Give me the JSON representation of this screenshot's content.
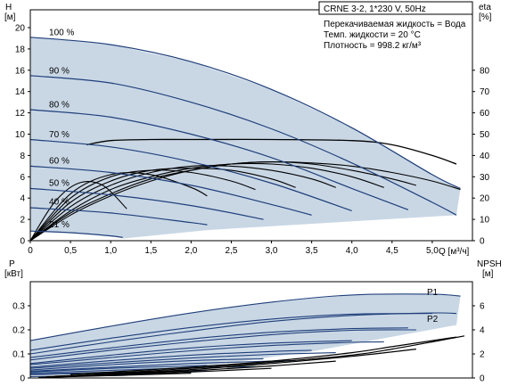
{
  "colors": {
    "region_fill": "#c9d7e5",
    "curve_blue": "#1f3f7a",
    "curve_black": "#000000",
    "frame": "#000000"
  },
  "chart_data": [
    {
      "type": "line",
      "title": "CRNE 3-2, 1*230 V, 50Hz",
      "info_lines": [
        "Перекачиваемая жидкость = Вода",
        "Темп. жидкости = 20 °C",
        "Плотность = 998.2 кг/м³"
      ],
      "xlabel": "Q [м³/ч]",
      "x_ticks": [
        "0",
        "0,5",
        "1,0",
        "1,5",
        "2,0",
        "2,5",
        "3,0",
        "3,5",
        "4,0",
        "4,5",
        "5,0"
      ],
      "xlim": [
        0,
        5.5
      ],
      "ylabel_left": {
        "line1": "H",
        "line2": "[м]"
      },
      "y_ticks_left": [
        "0",
        "2",
        "4",
        "6",
        "8",
        "10",
        "12",
        "14",
        "16",
        "18",
        "20"
      ],
      "ylim_left": [
        0,
        20
      ],
      "ylabel_right": {
        "line1": "eta",
        "line2": "[%]"
      },
      "y_ticks_right": [
        "0",
        "10",
        "20",
        "30",
        "40",
        "50",
        "60",
        "70",
        "80"
      ],
      "ylim_right": [
        0,
        100
      ],
      "grid": false,
      "speed_labels": [
        "100 %",
        "90 %",
        "80 %",
        "70 %",
        "60 %",
        "50 %",
        "40 %",
        "21 %"
      ],
      "head_series": [
        {
          "speed": 1.0,
          "x": [
            0,
            1.0,
            2.0,
            3.0,
            4.0,
            5.0,
            5.35
          ],
          "y": [
            19.1,
            18.4,
            16.8,
            14.2,
            10.6,
            6.2,
            4.9
          ]
        },
        {
          "speed": 0.9,
          "x": [
            0,
            1.0,
            2.0,
            3.0,
            4.0,
            5.0,
            5.3
          ],
          "y": [
            15.5,
            14.8,
            13.0,
            10.5,
            7.3,
            3.6,
            2.4
          ]
        },
        {
          "speed": 0.8,
          "x": [
            0,
            1.0,
            2.0,
            3.0,
            4.0,
            4.7
          ],
          "y": [
            12.3,
            11.6,
            10.0,
            7.8,
            4.9,
            2.9
          ]
        },
        {
          "speed": 0.7,
          "x": [
            0,
            1.0,
            2.0,
            3.0,
            4.0
          ],
          "y": [
            9.5,
            8.8,
            7.4,
            5.4,
            2.8
          ]
        },
        {
          "speed": 0.6,
          "x": [
            0,
            1.0,
            2.0,
            3.0,
            3.5
          ],
          "y": [
            7.0,
            6.4,
            5.2,
            3.4,
            2.4
          ]
        },
        {
          "speed": 0.5,
          "x": [
            0,
            1.0,
            2.0,
            2.9
          ],
          "y": [
            4.9,
            4.3,
            3.3,
            2.0
          ]
        },
        {
          "speed": 0.4,
          "x": [
            0,
            1.0,
            2.0,
            2.2
          ],
          "y": [
            3.1,
            2.6,
            1.7,
            1.5
          ]
        },
        {
          "speed": 0.21,
          "x": [
            0,
            0.5,
            1.0,
            1.15
          ],
          "y": [
            0.9,
            0.75,
            0.45,
            0.3
          ]
        }
      ],
      "efficiency_series": [
        {
          "speed": 1.0,
          "x": [
            0,
            0.5,
            1.0,
            1.5,
            2.0,
            2.5,
            3.0,
            3.5,
            4.0,
            4.5,
            5.0,
            5.35
          ],
          "y": [
            0,
            12,
            21,
            28,
            33,
            36,
            37,
            36.5,
            35,
            32,
            28,
            24
          ]
        },
        {
          "speed": 0.9,
          "x": [
            0,
            0.5,
            1.0,
            1.5,
            2.0,
            2.5,
            3.0,
            3.5,
            4.0,
            4.5,
            4.8
          ],
          "y": [
            0,
            13,
            22,
            29,
            33,
            36,
            37,
            36,
            33,
            29,
            26
          ]
        },
        {
          "speed": 0.8,
          "x": [
            0,
            0.5,
            1.0,
            1.5,
            2.0,
            2.5,
            3.0,
            3.5,
            4.0,
            4.4
          ],
          "y": [
            0,
            14,
            24,
            30,
            34,
            36,
            36,
            34,
            30,
            25
          ]
        },
        {
          "speed": 0.7,
          "x": [
            0,
            0.5,
            1.0,
            1.5,
            2.0,
            2.5,
            3.0,
            3.5,
            3.8
          ],
          "y": [
            0,
            16,
            26,
            32,
            35,
            35,
            33,
            29,
            25
          ]
        },
        {
          "speed": 0.6,
          "x": [
            0,
            0.5,
            1.0,
            1.5,
            2.0,
            2.5,
            3.0,
            3.3
          ],
          "y": [
            0,
            18,
            28,
            33,
            34,
            33,
            29,
            25
          ]
        },
        {
          "speed": 0.5,
          "x": [
            0,
            0.5,
            1.0,
            1.5,
            2.0,
            2.5,
            2.8
          ],
          "y": [
            0,
            20,
            30,
            33,
            32,
            28,
            24
          ]
        },
        {
          "speed": 0.4,
          "x": [
            0,
            0.5,
            1.0,
            1.5,
            2.0,
            2.2
          ],
          "y": [
            0,
            22,
            31,
            31,
            25,
            21
          ]
        },
        {
          "speed": 0.21,
          "x": [
            0,
            0.3,
            0.6,
            0.9,
            1.2
          ],
          "y": [
            0,
            18,
            27,
            26,
            15
          ]
        }
      ],
      "efficiency_envelope": {
        "x": [
          0.7,
          1.0,
          1.5,
          2.0,
          3.0,
          4.0,
          4.5,
          5.0,
          5.3
        ],
        "y": [
          45,
          47,
          47.5,
          47.5,
          47.5,
          47,
          45,
          40,
          36
        ]
      }
    },
    {
      "type": "line",
      "title": "",
      "xlim": [
        0,
        5.5
      ],
      "ylabel_left": {
        "line1": "P",
        "line2": "[кВт]"
      },
      "y_ticks_left": [
        "0",
        "0.1",
        "0.2",
        "0.3"
      ],
      "ylim_left": [
        0,
        0.4
      ],
      "ylabel_right": {
        "line1": "NPSH",
        "line2": "[м]"
      },
      "y_ticks_right": [
        "0",
        "2",
        "4",
        "6"
      ],
      "ylim_right": [
        0,
        8
      ],
      "grid": false,
      "series_labels": [
        "P1",
        "P2"
      ],
      "power_p1_series": [
        {
          "speed": 1.0,
          "x": [
            0,
            1.0,
            2.0,
            3.0,
            4.0,
            5.0,
            5.35
          ],
          "y": [
            0.155,
            0.215,
            0.27,
            0.315,
            0.345,
            0.348,
            0.34
          ]
        },
        {
          "speed": 0.9,
          "x": [
            0,
            1.0,
            2.0,
            3.0,
            4.0,
            5.0
          ],
          "y": [
            0.115,
            0.165,
            0.21,
            0.245,
            0.265,
            0.268
          ]
        },
        {
          "speed": 0.8,
          "x": [
            0,
            1.0,
            2.0,
            3.0,
            4.0,
            4.7
          ],
          "y": [
            0.085,
            0.125,
            0.162,
            0.19,
            0.205,
            0.208
          ]
        },
        {
          "speed": 0.7,
          "x": [
            0,
            1.0,
            2.0,
            3.0,
            4.0
          ],
          "y": [
            0.06,
            0.095,
            0.125,
            0.145,
            0.155
          ]
        },
        {
          "speed": 0.6,
          "x": [
            0,
            1.0,
            2.0,
            3.0,
            3.5
          ],
          "y": [
            0.045,
            0.072,
            0.095,
            0.11,
            0.115
          ]
        },
        {
          "speed": 0.5,
          "x": [
            0,
            1.0,
            2.0,
            2.9
          ],
          "y": [
            0.033,
            0.055,
            0.072,
            0.08
          ]
        },
        {
          "speed": 0.4,
          "x": [
            0,
            1.0,
            2.0,
            2.2
          ],
          "y": [
            0.025,
            0.04,
            0.05,
            0.052
          ]
        },
        {
          "speed": 0.21,
          "x": [
            0,
            0.5,
            1.0,
            1.15
          ],
          "y": [
            0.015,
            0.02,
            0.024,
            0.025
          ]
        }
      ],
      "power_p2_series": [
        {
          "speed": 1.0,
          "x": [
            0,
            1.0,
            2.0,
            3.0,
            4.0,
            5.0,
            5.3
          ],
          "y": [
            0.1,
            0.15,
            0.195,
            0.235,
            0.26,
            0.27,
            0.268
          ]
        },
        {
          "speed": 0.9,
          "x": [
            0,
            1.0,
            2.0,
            3.0,
            4.0,
            4.8
          ],
          "y": [
            0.075,
            0.115,
            0.15,
            0.18,
            0.198,
            0.2
          ]
        },
        {
          "speed": 0.8,
          "x": [
            0,
            1.0,
            2.0,
            3.0,
            4.0,
            4.4
          ],
          "y": [
            0.055,
            0.085,
            0.113,
            0.135,
            0.148,
            0.15
          ]
        },
        {
          "speed": 0.7,
          "x": [
            0,
            1.0,
            2.0,
            3.0,
            3.8
          ],
          "y": [
            0.04,
            0.063,
            0.083,
            0.098,
            0.105
          ]
        },
        {
          "speed": 0.6,
          "x": [
            0,
            1.0,
            2.0,
            3.0,
            3.3
          ],
          "y": [
            0.028,
            0.045,
            0.06,
            0.07,
            0.072
          ]
        },
        {
          "speed": 0.5,
          "x": [
            0,
            1.0,
            2.0,
            2.8
          ],
          "y": [
            0.02,
            0.032,
            0.042,
            0.047
          ]
        },
        {
          "speed": 0.4,
          "x": [
            0,
            1.0,
            2.0,
            2.2
          ],
          "y": [
            0.013,
            0.022,
            0.028,
            0.029
          ]
        },
        {
          "speed": 0.21,
          "x": [
            0,
            0.5,
            1.0,
            1.2
          ],
          "y": [
            0.006,
            0.008,
            0.01,
            0.011
          ]
        }
      ],
      "npsh_series": [
        {
          "x": [
            0.5,
            1.0,
            2.0,
            3.0,
            4.0,
            4.5,
            5.0,
            5.3
          ],
          "y": [
            0.3,
            0.5,
            0.9,
            1.4,
            2.1,
            2.6,
            3.1,
            3.4
          ]
        },
        {
          "x": [
            0.5,
            1.0,
            2.0,
            3.0,
            4.0,
            4.5,
            5.0,
            5.4
          ],
          "y": [
            0.2,
            0.4,
            0.8,
            1.3,
            1.9,
            2.4,
            3.0,
            3.5
          ]
        },
        {
          "x": [
            0.3,
            1.0,
            2.0,
            3.0,
            4.0,
            4.8
          ],
          "y": [
            0.15,
            0.35,
            0.7,
            1.2,
            1.8,
            2.4
          ]
        },
        {
          "x": [
            0.2,
            1.0,
            2.0,
            3.0,
            3.8
          ],
          "y": [
            0.1,
            0.3,
            0.6,
            1.0,
            1.4
          ]
        },
        {
          "x": [
            0.2,
            1.0,
            2.0,
            3.0
          ],
          "y": [
            0.05,
            0.25,
            0.5,
            0.8
          ]
        },
        {
          "x": [
            0.1,
            1.0,
            2.0
          ],
          "y": [
            0.05,
            0.2,
            0.4
          ]
        }
      ]
    }
  ]
}
